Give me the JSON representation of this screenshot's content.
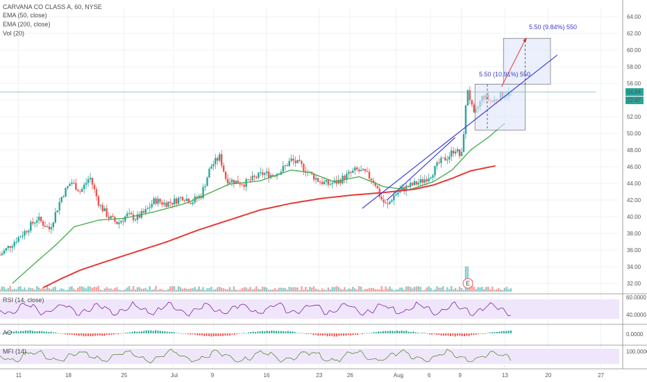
{
  "header": {
    "title": "CARVANA CO CLASS A, 60, NYSE",
    "indicators": [
      "EMA (50, close)",
      "EMA (200, close)",
      "Vol (20)"
    ]
  },
  "price_tags": {
    "last": "54.94",
    "countdown": "22:47"
  },
  "annotations": {
    "target_label": "5.50 (9.84%) 550",
    "range_label": "5.50 (10.91%) 550",
    "earnings_marker": "E"
  },
  "panes": {
    "rsi": {
      "title": "RSI (14, close)",
      "ticks": [
        "60.0000",
        "40.0000"
      ]
    },
    "ao": {
      "title": "AO",
      "ticks": [
        "0.0000"
      ]
    },
    "mfi": {
      "title": "MFI (14)",
      "ticks": [
        "100.0000"
      ]
    }
  },
  "colors": {
    "up": "#26a69a",
    "down": "#ef5350",
    "ema50": "#4caf50",
    "ema200": "#e53935",
    "trend": "#3f3fd6",
    "pane_bg": "#f0e6fb",
    "osc": "#7b1fa2"
  },
  "chart_data": {
    "type": "candlestick",
    "title": "CARVANA CO CLASS A, 60, NYSE",
    "y_axis": {
      "min": 31,
      "max": 65,
      "ticks": [
        32,
        34,
        36,
        38,
        40,
        42,
        44,
        46,
        48,
        50,
        52,
        54,
        56,
        58,
        60,
        62,
        64
      ],
      "tick_labels": [
        "32.00",
        "34.00",
        "36.00",
        "38.00",
        "40.00",
        "42.00",
        "44.00",
        "46.00",
        "48.00",
        "50.00",
        "52.00",
        "54.00",
        "56.00",
        "58.00",
        "60.00",
        "62.00",
        "64.00"
      ]
    },
    "x_axis": {
      "ticks": [
        {
          "label": "11",
          "t": 0.03
        },
        {
          "label": "18",
          "t": 0.11
        },
        {
          "label": "25",
          "t": 0.2
        },
        {
          "label": "Jul",
          "t": 0.28
        },
        {
          "label": "9",
          "t": 0.345
        },
        {
          "label": "16",
          "t": 0.43
        },
        {
          "label": "23",
          "t": 0.515
        },
        {
          "label": "26",
          "t": 0.565
        },
        {
          "label": "Aug",
          "t": 0.64
        },
        {
          "label": "6",
          "t": 0.695
        },
        {
          "label": "9",
          "t": 0.745
        },
        {
          "label": "13",
          "t": 0.815
        },
        {
          "label": "20",
          "t": 0.885
        },
        {
          "label": "27",
          "t": 0.97
        }
      ]
    },
    "price_anchors": [
      [
        0.0,
        35.4
      ],
      [
        0.02,
        36.8
      ],
      [
        0.04,
        38.2
      ],
      [
        0.06,
        39.8
      ],
      [
        0.08,
        38.5
      ],
      [
        0.1,
        42.5
      ],
      [
        0.115,
        44.2
      ],
      [
        0.13,
        43.0
      ],
      [
        0.145,
        44.8
      ],
      [
        0.16,
        41.5
      ],
      [
        0.175,
        40.0
      ],
      [
        0.19,
        39.2
      ],
      [
        0.205,
        40.2
      ],
      [
        0.22,
        39.8
      ],
      [
        0.235,
        40.6
      ],
      [
        0.25,
        42.0
      ],
      [
        0.265,
        41.6
      ],
      [
        0.28,
        41.8
      ],
      [
        0.295,
        42.4
      ],
      [
        0.31,
        41.8
      ],
      [
        0.325,
        42.6
      ],
      [
        0.34,
        46.0
      ],
      [
        0.355,
        47.2
      ],
      [
        0.365,
        44.5
      ],
      [
        0.38,
        44.2
      ],
      [
        0.395,
        44.0
      ],
      [
        0.41,
        44.6
      ],
      [
        0.425,
        45.2
      ],
      [
        0.44,
        45.0
      ],
      [
        0.455,
        45.6
      ],
      [
        0.47,
        46.8
      ],
      [
        0.485,
        46.2
      ],
      [
        0.5,
        45.2
      ],
      [
        0.515,
        44.3
      ],
      [
        0.53,
        43.9
      ],
      [
        0.545,
        44.2
      ],
      [
        0.56,
        44.9
      ],
      [
        0.575,
        45.6
      ],
      [
        0.59,
        45.2
      ],
      [
        0.605,
        44.2
      ],
      [
        0.615,
        42.2
      ],
      [
        0.625,
        41.2
      ],
      [
        0.635,
        42.5
      ],
      [
        0.65,
        43.3
      ],
      [
        0.665,
        43.8
      ],
      [
        0.68,
        44.2
      ],
      [
        0.695,
        45.0
      ],
      [
        0.71,
        46.5
      ],
      [
        0.725,
        47.3
      ],
      [
        0.735,
        48.2
      ],
      [
        0.745,
        47.0
      ],
      [
        0.755,
        55.5
      ],
      [
        0.765,
        52.0
      ],
      [
        0.78,
        54.5
      ],
      [
        0.795,
        53.8
      ],
      [
        0.81,
        54.6
      ],
      [
        0.825,
        54.9
      ]
    ],
    "series": [
      {
        "name": "EMA (50, close)",
        "anchors": [
          [
            0.02,
            32.0
          ],
          [
            0.05,
            34.0
          ],
          [
            0.09,
            36.6
          ],
          [
            0.12,
            38.8
          ],
          [
            0.16,
            39.6
          ],
          [
            0.2,
            39.8
          ],
          [
            0.25,
            40.6
          ],
          [
            0.3,
            41.6
          ],
          [
            0.34,
            42.9
          ],
          [
            0.37,
            43.9
          ],
          [
            0.42,
            44.3
          ],
          [
            0.47,
            45.6
          ],
          [
            0.5,
            45.3
          ],
          [
            0.54,
            44.2
          ],
          [
            0.58,
            44.8
          ],
          [
            0.62,
            43.6
          ],
          [
            0.66,
            43.2
          ],
          [
            0.7,
            44.2
          ],
          [
            0.73,
            45.6
          ],
          [
            0.76,
            48.0
          ],
          [
            0.79,
            49.6
          ],
          [
            0.815,
            51.2
          ]
        ]
      },
      {
        "name": "EMA (200, close)",
        "anchors": [
          [
            0.07,
            31.5
          ],
          [
            0.1,
            32.6
          ],
          [
            0.13,
            33.6
          ],
          [
            0.17,
            34.6
          ],
          [
            0.22,
            35.8
          ],
          [
            0.27,
            37.0
          ],
          [
            0.32,
            38.4
          ],
          [
            0.37,
            39.6
          ],
          [
            0.42,
            40.8
          ],
          [
            0.47,
            41.6
          ],
          [
            0.52,
            42.2
          ],
          [
            0.57,
            42.6
          ],
          [
            0.62,
            42.9
          ],
          [
            0.67,
            43.3
          ],
          [
            0.7,
            43.8
          ],
          [
            0.73,
            44.6
          ],
          [
            0.76,
            45.5
          ],
          [
            0.8,
            46.1
          ]
        ]
      }
    ]
  }
}
